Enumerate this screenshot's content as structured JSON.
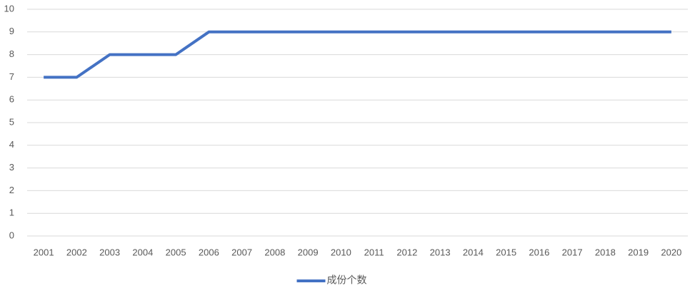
{
  "chart_data": {
    "type": "line",
    "categories": [
      "2001",
      "2002",
      "2003",
      "2004",
      "2005",
      "2006",
      "2007",
      "2008",
      "2009",
      "2010",
      "2011",
      "2012",
      "2013",
      "2014",
      "2015",
      "2016",
      "2017",
      "2018",
      "2019",
      "2020"
    ],
    "series": [
      {
        "name": "成份个数",
        "color": "#4472c4",
        "values": [
          7,
          7,
          8,
          8,
          8,
          9,
          9,
          9,
          9,
          9,
          9,
          9,
          9,
          9,
          9,
          9,
          9,
          9,
          9,
          9
        ]
      }
    ],
    "ylim": [
      0,
      10
    ],
    "yticks": [
      0,
      1,
      2,
      3,
      4,
      5,
      6,
      7,
      8,
      9,
      10
    ],
    "grid": true,
    "legend": "bottom"
  }
}
